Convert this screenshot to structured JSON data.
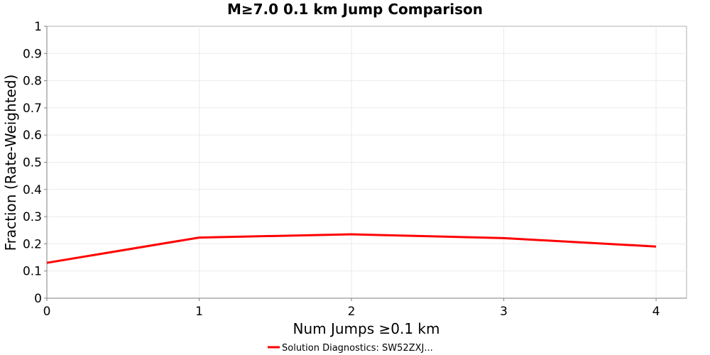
{
  "chart_data": {
    "type": "line",
    "title": "M≥7.0 0.1 km Jump Comparison",
    "xlabel": "Num Jumps ≥0.1 km",
    "ylabel": "Fraction (Rate-Weighted)",
    "xlim": [
      0,
      4.2
    ],
    "ylim": [
      0,
      1
    ],
    "x_ticks": [
      "0",
      "1",
      "2",
      "3",
      "4"
    ],
    "y_ticks": [
      "0",
      "0.1",
      "0.2",
      "0.3",
      "0.4",
      "0.5",
      "0.6",
      "0.7",
      "0.8",
      "0.9",
      "1"
    ],
    "grid": true,
    "legend_position": "bottom-center",
    "series": [
      {
        "name": "Solution Diagnostics: SW52ZXJ...",
        "color": "#ff0000",
        "x": [
          0,
          1,
          2,
          3,
          4
        ],
        "y": [
          0.13,
          0.223,
          0.235,
          0.221,
          0.19
        ]
      }
    ]
  }
}
